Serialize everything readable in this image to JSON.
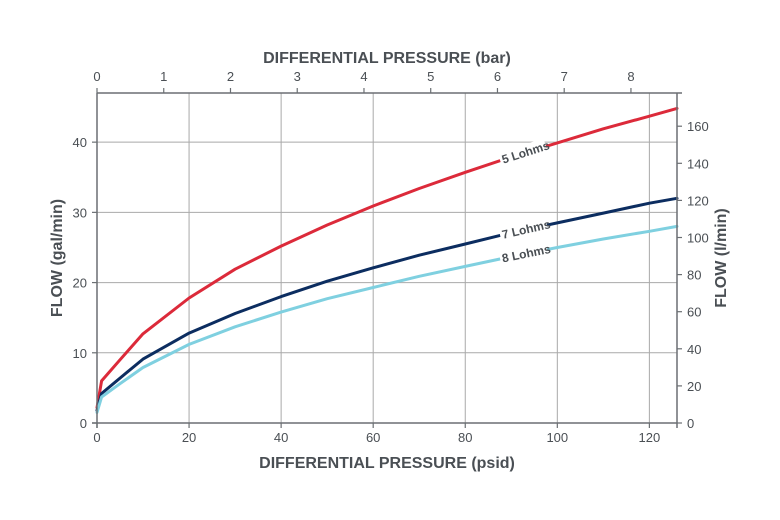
{
  "chart_data": {
    "type": "line",
    "xlabel": "DIFFERENTIAL PRESSURE (psid)",
    "x2label": "DIFFERENTIAL PRESSURE (bar)",
    "ylabel": "FLOW (gal/min)",
    "y2label": "FLOW (l/min)",
    "xlim": [
      0,
      126
    ],
    "ylim": [
      0,
      47
    ],
    "x2lim": [
      0,
      8.69
    ],
    "y2lim": [
      0,
      177.9
    ],
    "xticks": [
      0,
      20,
      40,
      60,
      80,
      100,
      120
    ],
    "yticks": [
      0,
      10,
      20,
      30,
      40
    ],
    "x2ticks": [
      0,
      1,
      2,
      3,
      4,
      5,
      6,
      7,
      8
    ],
    "y2ticks": [
      0,
      20,
      40,
      60,
      80,
      100,
      120,
      140,
      160
    ],
    "grid": true,
    "series": [
      {
        "name": "5 Lohms",
        "color": "#dc2a3a",
        "x": [
          0,
          1,
          5,
          10,
          20,
          30,
          40,
          50,
          60,
          70,
          80,
          90,
          100,
          110,
          120,
          126
        ],
        "y": [
          2.2,
          6.0,
          9.0,
          12.7,
          17.8,
          21.9,
          25.2,
          28.2,
          30.9,
          33.4,
          35.7,
          37.9,
          39.9,
          41.9,
          43.7,
          44.8
        ]
      },
      {
        "name": "7 Lohms",
        "color": "#0c2d60",
        "x": [
          0,
          1,
          5,
          10,
          20,
          30,
          40,
          50,
          60,
          70,
          80,
          90,
          100,
          110,
          120,
          126
        ],
        "y": [
          1.8,
          4.2,
          6.4,
          9.1,
          12.8,
          15.6,
          18.0,
          20.2,
          22.1,
          23.9,
          25.5,
          27.1,
          28.5,
          29.9,
          31.3,
          32.0
        ]
      },
      {
        "name": "8 Lohms",
        "color": "#7fd0e0",
        "x": [
          0,
          1,
          5,
          10,
          20,
          30,
          40,
          50,
          60,
          70,
          80,
          90,
          100,
          110,
          120,
          126
        ],
        "y": [
          1.5,
          3.7,
          5.6,
          7.9,
          11.2,
          13.7,
          15.8,
          17.7,
          19.3,
          20.9,
          22.3,
          23.7,
          25.0,
          26.2,
          27.3,
          28.0
        ]
      }
    ],
    "labels": [
      {
        "text": "5 Lohms",
        "series": "5 Lohms",
        "x": 88
      },
      {
        "text": "7 Lohms",
        "series": "7 Lohms",
        "x": 88
      },
      {
        "text": "8 Lohms",
        "series": "8 Lohms",
        "x": 88
      }
    ]
  }
}
